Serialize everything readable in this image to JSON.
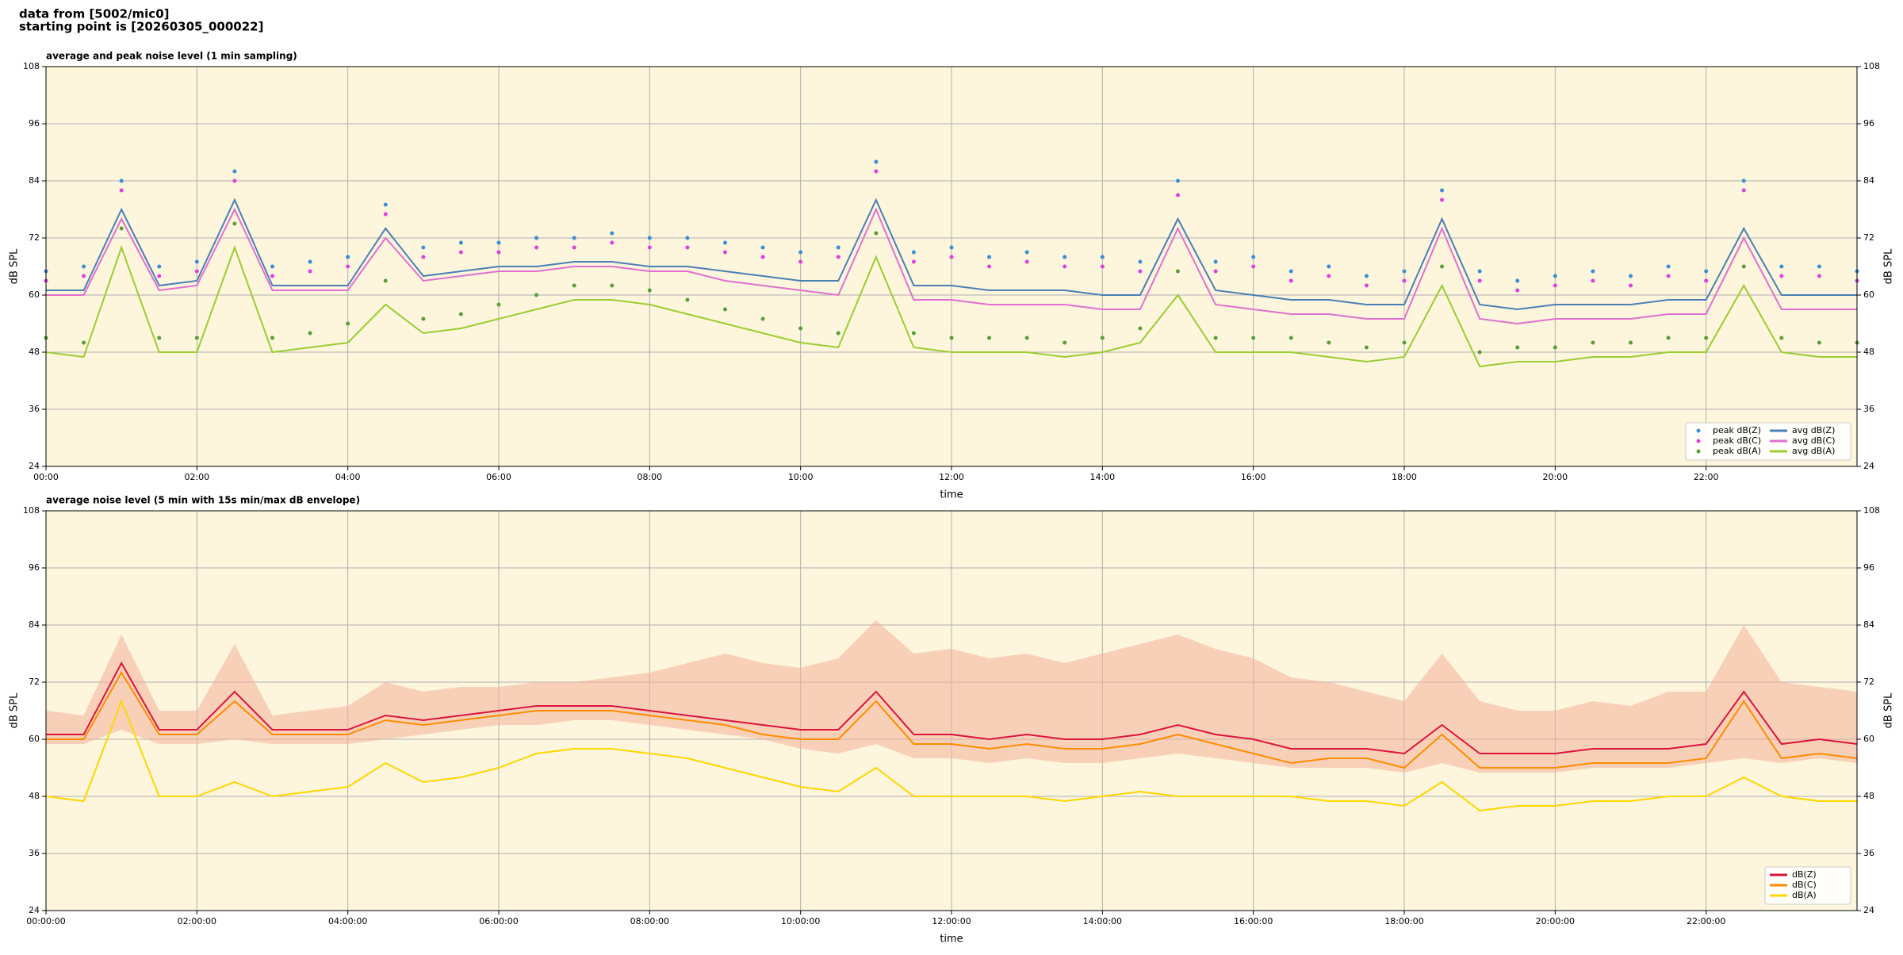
{
  "header": [
    "data from [5002/mic0]",
    "starting point is [20260305_000022]"
  ],
  "chart_data": [
    {
      "type": "line",
      "title": "average and peak noise level (1 min sampling)",
      "xlabel": "time",
      "ylabel": "dB SPL",
      "x": [
        0,
        0.5,
        1,
        1.5,
        2,
        2.5,
        3,
        3.5,
        4,
        4.5,
        5,
        5.5,
        6,
        6.5,
        7,
        7.5,
        8,
        8.5,
        9,
        9.5,
        10,
        10.5,
        11,
        11.5,
        12,
        12.5,
        13,
        13.5,
        14,
        14.5,
        15,
        15.5,
        16,
        16.5,
        17,
        17.5,
        18,
        18.5,
        19,
        19.5,
        20,
        20.5,
        21,
        21.5,
        22,
        22.5,
        23,
        23.5,
        24
      ],
      "xlim": [
        0,
        24
      ],
      "xticks": [
        {
          "value": 0,
          "label": "00:00"
        },
        {
          "value": 2,
          "label": "02:00"
        },
        {
          "value": 4,
          "label": "04:00"
        },
        {
          "value": 6,
          "label": "06:00"
        },
        {
          "value": 8,
          "label": "08:00"
        },
        {
          "value": 10,
          "label": "10:00"
        },
        {
          "value": 12,
          "label": "12:00"
        },
        {
          "value": 14,
          "label": "14:00"
        },
        {
          "value": 16,
          "label": "16:00"
        },
        {
          "value": 18,
          "label": "18:00"
        },
        {
          "value": 20,
          "label": "20:00"
        },
        {
          "value": 22,
          "label": "22:00"
        }
      ],
      "ylim": [
        24,
        108
      ],
      "yticks": [
        24,
        36,
        48,
        60,
        72,
        84,
        96,
        108
      ],
      "grid": true,
      "legend": "lower right",
      "series": [
        {
          "name": "peak dB(Z)",
          "type": "scatter",
          "color": "#3b8ed6",
          "values": [
            65,
            66,
            84,
            66,
            67,
            86,
            66,
            67,
            68,
            79,
            70,
            71,
            71,
            72,
            72,
            73,
            72,
            72,
            71,
            70,
            69,
            70,
            88,
            69,
            70,
            68,
            69,
            68,
            68,
            67,
            84,
            67,
            68,
            65,
            66,
            64,
            65,
            82,
            65,
            63,
            64,
            65,
            64,
            66,
            65,
            84,
            66,
            66,
            65
          ]
        },
        {
          "name": "peak dB(C)",
          "type": "scatter",
          "color": "#e040e0",
          "values": [
            63,
            64,
            82,
            64,
            65,
            84,
            64,
            65,
            66,
            77,
            68,
            69,
            69,
            70,
            70,
            71,
            70,
            70,
            69,
            68,
            67,
            68,
            86,
            67,
            68,
            66,
            67,
            66,
            66,
            65,
            81,
            65,
            66,
            63,
            64,
            62,
            63,
            80,
            63,
            61,
            62,
            63,
            62,
            64,
            63,
            82,
            64,
            64,
            63
          ]
        },
        {
          "name": "peak dB(A)",
          "type": "scatter",
          "color": "#5a9e3a",
          "values": [
            51,
            50,
            74,
            51,
            51,
            75,
            51,
            52,
            54,
            63,
            55,
            56,
            58,
            60,
            62,
            62,
            61,
            59,
            57,
            55,
            53,
            52,
            73,
            52,
            51,
            51,
            51,
            50,
            51,
            53,
            65,
            51,
            51,
            51,
            50,
            49,
            50,
            66,
            48,
            49,
            49,
            50,
            50,
            51,
            51,
            66,
            51,
            50,
            50
          ]
        },
        {
          "name": "avg dB(Z)",
          "type": "line",
          "color": "#4a7fb5",
          "values": [
            61,
            61,
            78,
            62,
            63,
            80,
            62,
            62,
            62,
            74,
            64,
            65,
            66,
            66,
            67,
            67,
            66,
            66,
            65,
            64,
            63,
            63,
            80,
            62,
            62,
            61,
            61,
            61,
            60,
            60,
            76,
            61,
            60,
            59,
            59,
            58,
            58,
            76,
            58,
            57,
            58,
            58,
            58,
            59,
            59,
            74,
            60,
            60,
            60
          ]
        },
        {
          "name": "avg dB(C)",
          "type": "line",
          "color": "#e070d0",
          "values": [
            60,
            60,
            76,
            61,
            62,
            78,
            61,
            61,
            61,
            72,
            63,
            64,
            65,
            65,
            66,
            66,
            65,
            65,
            63,
            62,
            61,
            60,
            78,
            59,
            59,
            58,
            58,
            58,
            57,
            57,
            74,
            58,
            57,
            56,
            56,
            55,
            55,
            74,
            55,
            54,
            55,
            55,
            55,
            56,
            56,
            72,
            57,
            57,
            57
          ]
        },
        {
          "name": "avg dB(A)",
          "type": "line",
          "color": "#9acd32",
          "values": [
            48,
            47,
            70,
            48,
            48,
            70,
            48,
            49,
            50,
            58,
            52,
            53,
            55,
            57,
            59,
            59,
            58,
            56,
            54,
            52,
            50,
            49,
            68,
            49,
            48,
            48,
            48,
            47,
            48,
            50,
            60,
            48,
            48,
            48,
            47,
            46,
            47,
            62,
            45,
            46,
            46,
            47,
            47,
            48,
            48,
            62,
            48,
            47,
            47
          ]
        }
      ]
    },
    {
      "type": "line",
      "title": "average noise level (5 min with 15s min/max dB envelope)",
      "xlabel": "time",
      "ylabel": "dB SPL",
      "x": [
        0,
        0.5,
        1,
        1.5,
        2,
        2.5,
        3,
        3.5,
        4,
        4.5,
        5,
        5.5,
        6,
        6.5,
        7,
        7.5,
        8,
        8.5,
        9,
        9.5,
        10,
        10.5,
        11,
        11.5,
        12,
        12.5,
        13,
        13.5,
        14,
        14.5,
        15,
        15.5,
        16,
        16.5,
        17,
        17.5,
        18,
        18.5,
        19,
        19.5,
        20,
        20.5,
        21,
        21.5,
        22,
        22.5,
        23,
        23.5,
        24
      ],
      "xlim": [
        0,
        24
      ],
      "xticks": [
        {
          "value": 0,
          "label": "00:00:00"
        },
        {
          "value": 2,
          "label": "02:00:00"
        },
        {
          "value": 4,
          "label": "04:00:00"
        },
        {
          "value": 6,
          "label": "06:00:00"
        },
        {
          "value": 8,
          "label": "08:00:00"
        },
        {
          "value": 10,
          "label": "10:00:00"
        },
        {
          "value": 12,
          "label": "12:00:00"
        },
        {
          "value": 14,
          "label": "14:00:00"
        },
        {
          "value": 16,
          "label": "16:00:00"
        },
        {
          "value": 18,
          "label": "18:00:00"
        },
        {
          "value": 20,
          "label": "20:00:00"
        },
        {
          "value": 22,
          "label": "22:00:00"
        }
      ],
      "ylim": [
        24,
        108
      ],
      "yticks": [
        24,
        36,
        48,
        60,
        72,
        84,
        96,
        108
      ],
      "grid": true,
      "legend": "lower right",
      "envelope": {
        "color": "#f4b09a",
        "low": [
          59,
          59,
          62,
          59,
          59,
          60,
          59,
          59,
          59,
          60,
          61,
          62,
          63,
          63,
          64,
          64,
          63,
          62,
          61,
          60,
          58,
          57,
          59,
          56,
          56,
          55,
          56,
          55,
          55,
          56,
          57,
          56,
          55,
          54,
          54,
          54,
          53,
          55,
          53,
          53,
          53,
          54,
          54,
          54,
          55,
          56,
          55,
          56,
          55
        ],
        "high": [
          66,
          65,
          82,
          66,
          66,
          80,
          65,
          66,
          67,
          72,
          70,
          71,
          71,
          72,
          72,
          73,
          74,
          76,
          78,
          76,
          75,
          77,
          85,
          78,
          79,
          77,
          78,
          76,
          78,
          80,
          82,
          79,
          77,
          73,
          72,
          70,
          68,
          78,
          68,
          66,
          66,
          68,
          67,
          70,
          70,
          84,
          72,
          71,
          70
        ]
      },
      "series": [
        {
          "name": "dB(Z)",
          "type": "line",
          "color": "#dc143c",
          "values": [
            61,
            61,
            76,
            62,
            62,
            70,
            62,
            62,
            62,
            65,
            64,
            65,
            66,
            67,
            67,
            67,
            66,
            65,
            64,
            63,
            62,
            62,
            70,
            61,
            61,
            60,
            61,
            60,
            60,
            61,
            63,
            61,
            60,
            58,
            58,
            58,
            57,
            63,
            57,
            57,
            57,
            58,
            58,
            58,
            59,
            70,
            59,
            60,
            59
          ]
        },
        {
          "name": "dB(C)",
          "type": "line",
          "color": "#ff8c00",
          "values": [
            60,
            60,
            74,
            61,
            61,
            68,
            61,
            61,
            61,
            64,
            63,
            64,
            65,
            66,
            66,
            66,
            65,
            64,
            63,
            61,
            60,
            60,
            68,
            59,
            59,
            58,
            59,
            58,
            58,
            59,
            61,
            59,
            57,
            55,
            56,
            56,
            54,
            61,
            54,
            54,
            54,
            55,
            55,
            55,
            56,
            68,
            56,
            57,
            56
          ]
        },
        {
          "name": "dB(A)",
          "type": "line",
          "color": "#ffd700",
          "values": [
            48,
            47,
            68,
            48,
            48,
            51,
            48,
            49,
            50,
            55,
            51,
            52,
            54,
            57,
            58,
            58,
            57,
            56,
            54,
            52,
            50,
            49,
            54,
            48,
            48,
            48,
            48,
            47,
            48,
            49,
            48,
            48,
            48,
            48,
            47,
            47,
            46,
            51,
            45,
            46,
            46,
            47,
            47,
            48,
            48,
            52,
            48,
            47,
            47
          ]
        }
      ]
    }
  ]
}
